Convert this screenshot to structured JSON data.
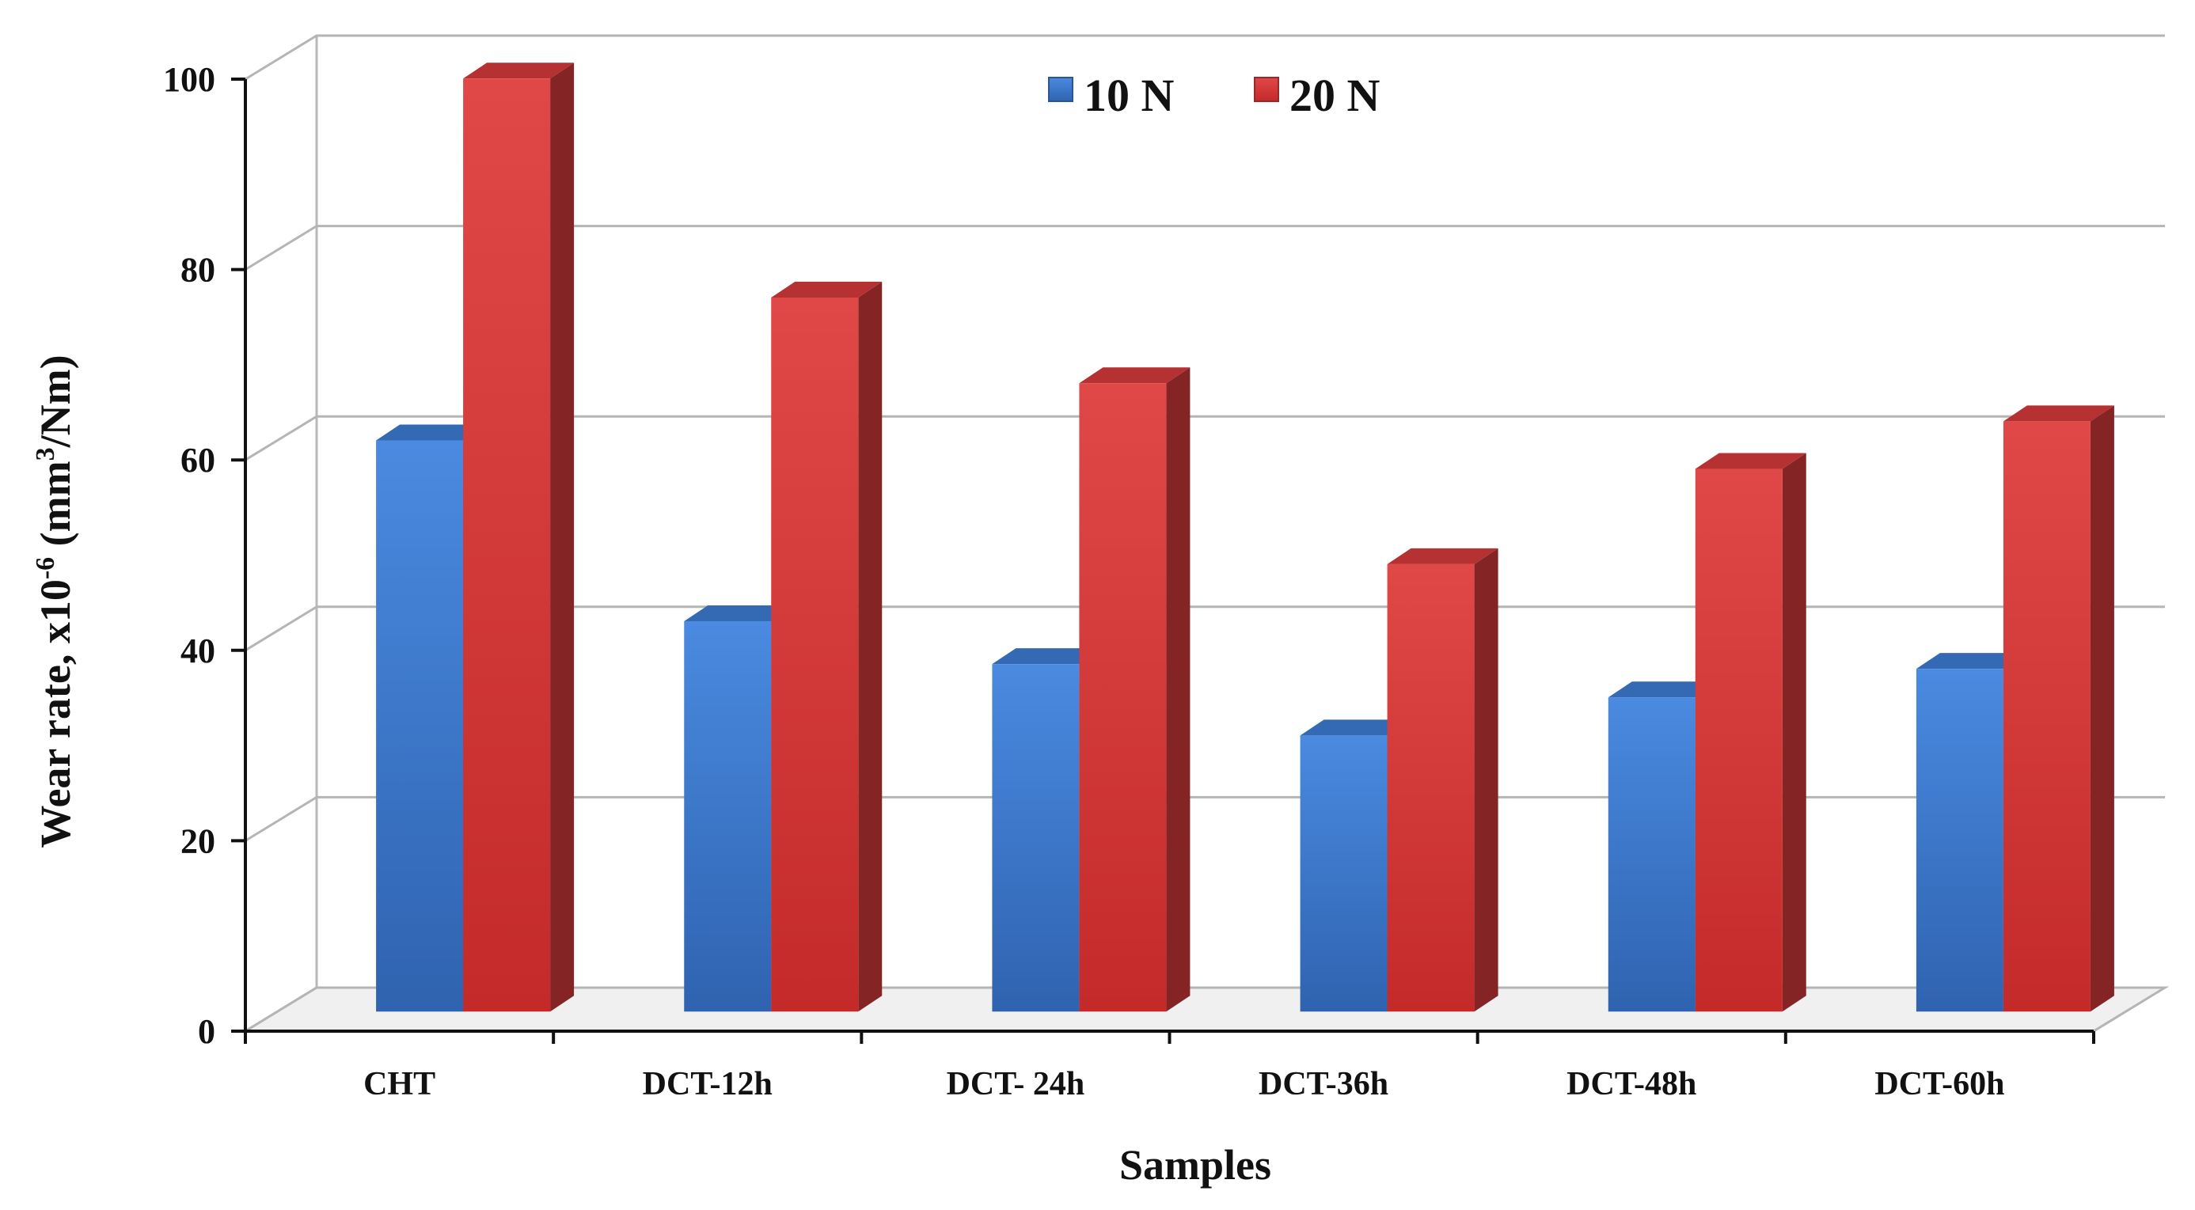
{
  "chart_data": {
    "type": "bar",
    "style": "3d-clustered-column",
    "categories": [
      "CHT",
      "DCT-12h",
      "DCT- 24h",
      "DCT-36h",
      "DCT-48h",
      "DCT-60h"
    ],
    "series": [
      {
        "name": "10 N",
        "values": [
          60,
          41,
          36.5,
          29,
          33,
          36
        ],
        "color": "#3d7bd4"
      },
      {
        "name": "20 N",
        "values": [
          98,
          75,
          66,
          47,
          57,
          62
        ],
        "color": "#d63a3a"
      }
    ],
    "yticks": [
      0,
      20,
      40,
      60,
      80,
      100
    ],
    "ylim": [
      0,
      100
    ],
    "ylabel": {
      "prefix": "Wear rate, x10",
      "exponent": "-6",
      "middle": " (mm",
      "unit_power": "3",
      "suffix": "/Nm)"
    },
    "xlabel": "Samples",
    "grid": true,
    "legend_position": "top-center"
  }
}
